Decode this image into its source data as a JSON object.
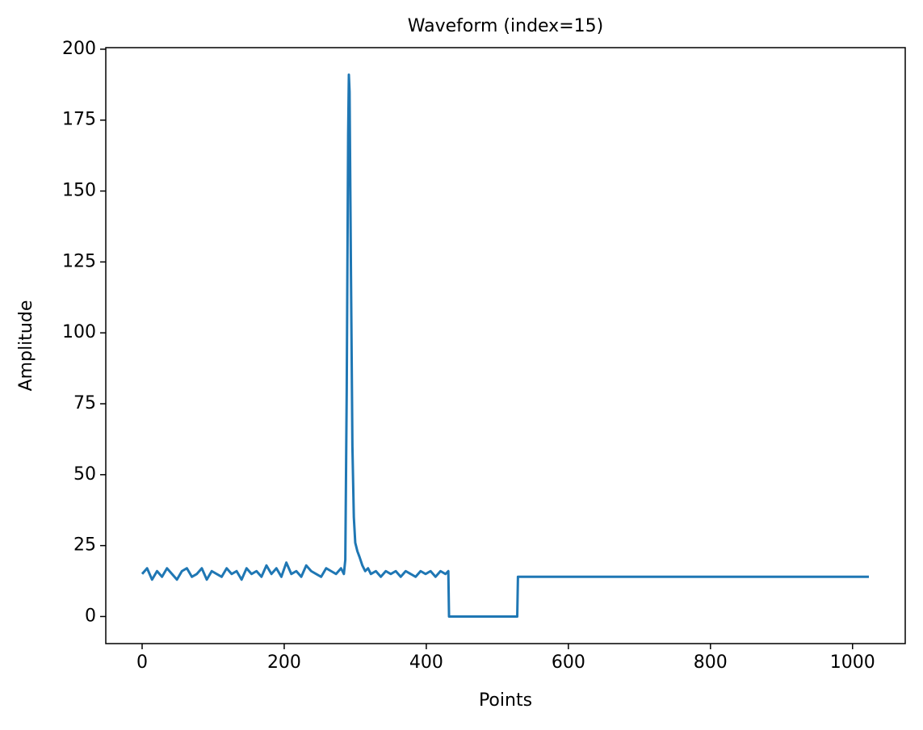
{
  "chart_data": {
    "type": "line",
    "title": "Waveform (index=15)",
    "x_label": "Points",
    "y_label": "Amplitude",
    "xlim": [
      -51.15,
      1074.15
    ],
    "ylim": [
      -9.55,
      200.55
    ],
    "xticks": [
      0,
      200,
      400,
      600,
      800,
      1000
    ],
    "yticks": [
      0,
      25,
      50,
      75,
      100,
      125,
      150,
      175,
      200
    ],
    "grid": false,
    "series": [
      {
        "name": "Waveform",
        "color": "#1f77b4",
        "x": [
          0,
          7,
          14,
          21,
          28,
          35,
          42,
          49,
          56,
          63,
          70,
          77,
          84,
          91,
          98,
          105,
          112,
          119,
          126,
          133,
          140,
          147,
          154,
          161,
          168,
          175,
          182,
          189,
          196,
          203,
          210,
          217,
          224,
          231,
          238,
          245,
          252,
          259,
          266,
          273,
          280,
          284,
          286,
          288,
          290,
          291,
          292,
          294,
          296,
          298,
          300,
          303,
          306,
          310,
          314,
          318,
          322,
          329,
          336,
          343,
          350,
          357,
          364,
          371,
          378,
          385,
          392,
          399,
          406,
          413,
          420,
          427,
          431,
          432,
          528,
          529,
          1023
        ],
        "values": [
          15,
          17,
          13,
          16,
          14,
          17,
          15,
          13,
          16,
          17,
          14,
          15,
          17,
          13,
          16,
          15,
          14,
          17,
          15,
          16,
          13,
          17,
          15,
          16,
          14,
          18,
          15,
          17,
          14,
          19,
          15,
          16,
          14,
          18,
          16,
          15,
          14,
          17,
          16,
          15,
          17,
          15,
          20,
          80,
          170,
          191,
          185,
          120,
          60,
          35,
          26,
          23,
          21,
          18,
          16,
          17,
          15,
          16,
          14,
          16,
          15,
          16,
          14,
          16,
          15,
          14,
          16,
          15,
          16,
          14,
          16,
          15,
          16,
          0,
          0,
          14,
          14
        ]
      }
    ]
  }
}
